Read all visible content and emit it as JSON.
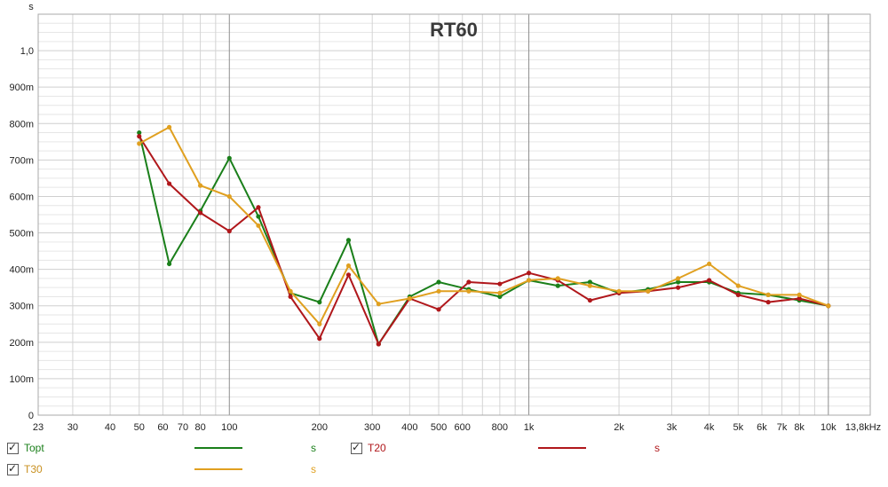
{
  "chart_data": {
    "type": "line",
    "title": "RT60",
    "ylabel": "s",
    "x_scale": "log",
    "xlim": [
      23,
      13800
    ],
    "ylim": [
      0,
      1.1
    ],
    "x_ticks": [
      {
        "v": 23,
        "label": "23"
      },
      {
        "v": 30,
        "label": "30"
      },
      {
        "v": 40,
        "label": "40"
      },
      {
        "v": 50,
        "label": "50"
      },
      {
        "v": 60,
        "label": "60"
      },
      {
        "v": 70,
        "label": "70"
      },
      {
        "v": 80,
        "label": "80"
      },
      {
        "v": 100,
        "label": "100"
      },
      {
        "v": 200,
        "label": "200"
      },
      {
        "v": 300,
        "label": "300"
      },
      {
        "v": 400,
        "label": "400"
      },
      {
        "v": 500,
        "label": "500"
      },
      {
        "v": 600,
        "label": "600"
      },
      {
        "v": 800,
        "label": "800"
      },
      {
        "v": 1000,
        "label": "1k"
      },
      {
        "v": 2000,
        "label": "2k"
      },
      {
        "v": 3000,
        "label": "3k"
      },
      {
        "v": 4000,
        "label": "4k"
      },
      {
        "v": 5000,
        "label": "5k"
      },
      {
        "v": 6000,
        "label": "6k"
      },
      {
        "v": 7000,
        "label": "7k"
      },
      {
        "v": 8000,
        "label": "8k"
      },
      {
        "v": 10000,
        "label": "10k"
      },
      {
        "v": 13800,
        "label": "13,8kHz"
      }
    ],
    "y_ticks": [
      {
        "v": 0,
        "label": "0"
      },
      {
        "v": 0.1,
        "label": "100m"
      },
      {
        "v": 0.2,
        "label": "200m"
      },
      {
        "v": 0.3,
        "label": "300m"
      },
      {
        "v": 0.4,
        "label": "400m"
      },
      {
        "v": 0.5,
        "label": "500m"
      },
      {
        "v": 0.6,
        "label": "600m"
      },
      {
        "v": 0.7,
        "label": "700m"
      },
      {
        "v": 0.8,
        "label": "800m"
      },
      {
        "v": 0.9,
        "label": "900m"
      },
      {
        "v": 1.0,
        "label": "1,0"
      }
    ],
    "major_x_lines": [
      100,
      1000,
      10000
    ],
    "x": [
      50,
      63,
      80,
      100,
      125,
      160,
      200,
      250,
      315,
      400,
      500,
      630,
      800,
      1000,
      1250,
      1600,
      2000,
      2500,
      3150,
      4000,
      5000,
      6300,
      8000,
      10000
    ],
    "series": [
      {
        "name": "Topt",
        "color": "#1a7f1a",
        "values": [
          0.775,
          0.415,
          0.56,
          0.705,
          0.545,
          0.335,
          0.31,
          0.48,
          0.195,
          0.325,
          0.365,
          0.345,
          0.325,
          0.37,
          0.355,
          0.365,
          0.335,
          0.345,
          0.365,
          0.365,
          0.335,
          0.33,
          0.315,
          0.3
        ]
      },
      {
        "name": "T20",
        "color": "#b0171b",
        "values": [
          0.765,
          0.635,
          0.555,
          0.505,
          0.57,
          0.325,
          0.21,
          0.385,
          0.195,
          0.32,
          0.29,
          0.365,
          0.36,
          0.39,
          0.37,
          0.315,
          0.335,
          0.34,
          0.35,
          0.37,
          0.33,
          0.31,
          0.32,
          0.3
        ]
      },
      {
        "name": "T30",
        "color": "#e0a020",
        "values": [
          0.745,
          0.79,
          0.63,
          0.6,
          0.52,
          0.34,
          0.25,
          0.41,
          0.305,
          0.32,
          0.34,
          0.34,
          0.335,
          0.37,
          0.375,
          0.355,
          0.34,
          0.34,
          0.375,
          0.415,
          0.355,
          0.33,
          0.33,
          0.3
        ]
      }
    ]
  },
  "legend": [
    {
      "name": "Topt",
      "unit": "s",
      "checked": true,
      "color": "#1a7f1a",
      "text_color": "#1a7f1a",
      "unit_color": "#1a7f1a"
    },
    {
      "name": "T20",
      "unit": "s",
      "checked": true,
      "color": "#b0171b",
      "text_color": "#b0171b",
      "unit_color": "#b0171b"
    },
    {
      "name": "T30",
      "unit": "s",
      "checked": true,
      "color": "#e0a020",
      "text_color": "#c89020",
      "unit_color": "#e0a020"
    }
  ]
}
